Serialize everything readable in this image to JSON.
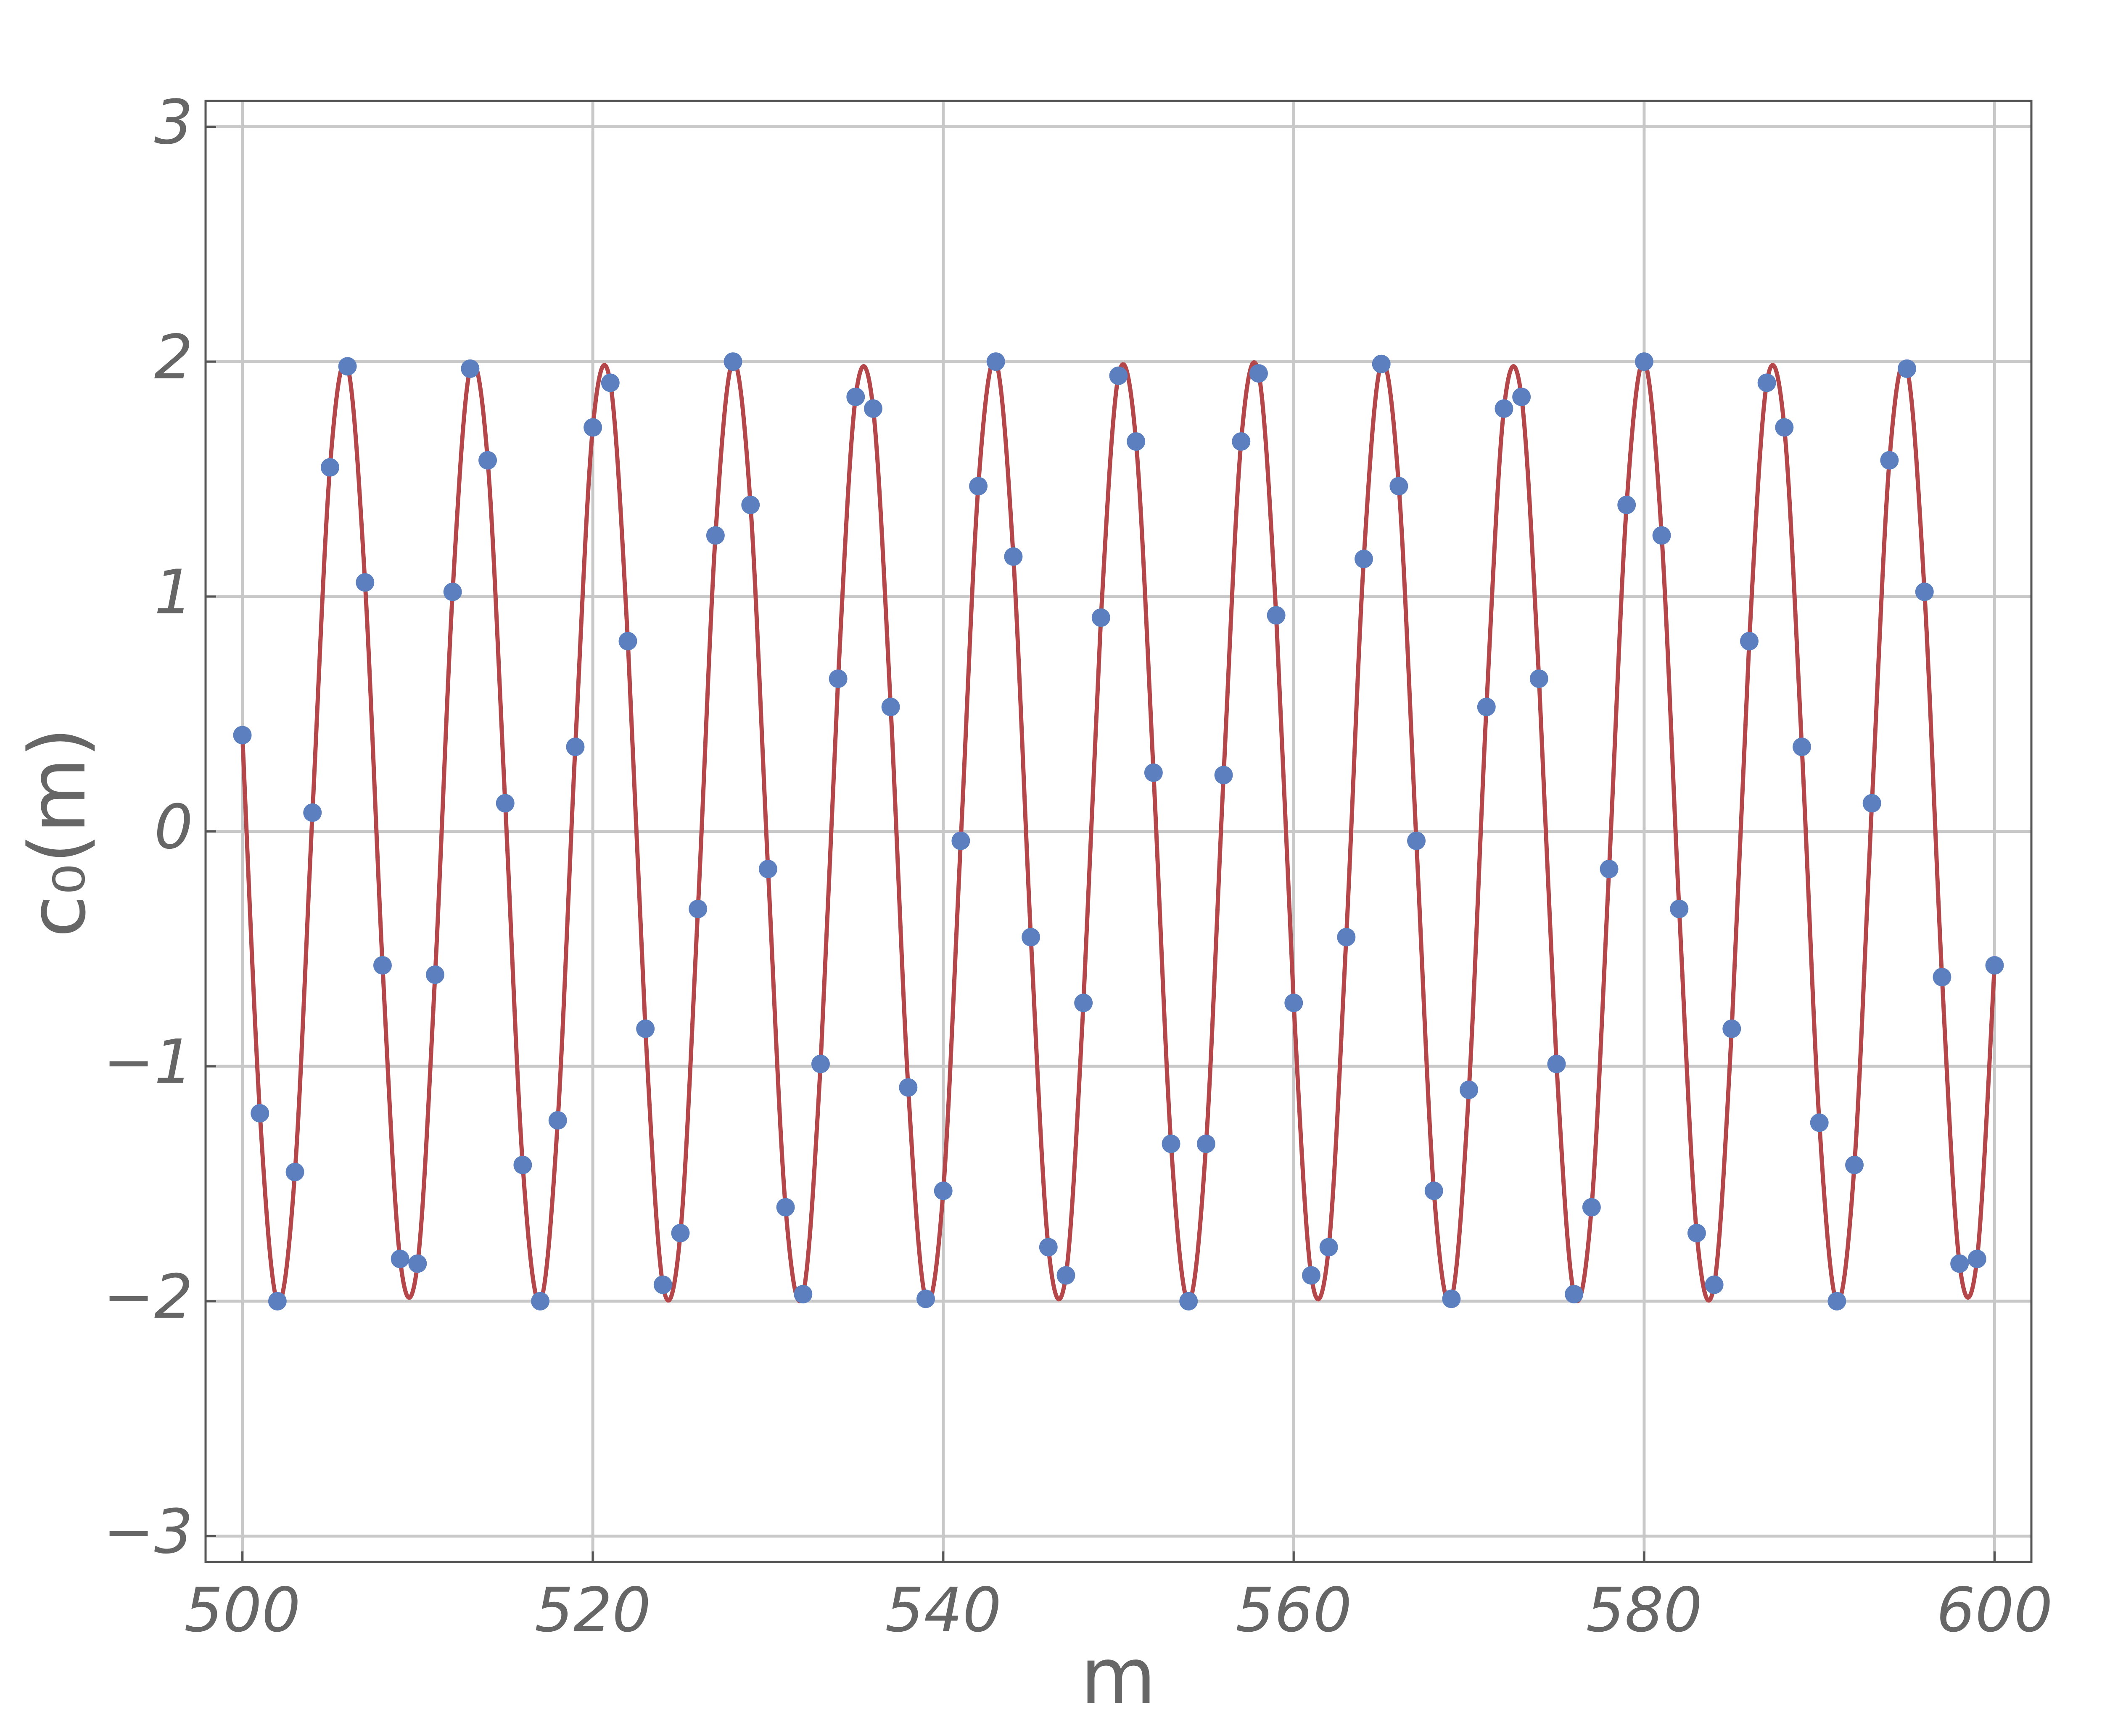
{
  "chart_data": {
    "type": "scatter",
    "x_label": "m",
    "y_label": "c₀(m)",
    "x": [
      500,
      501,
      502,
      503,
      504,
      505,
      506,
      507,
      508,
      509,
      510,
      511,
      512,
      513,
      514,
      515,
      516,
      517,
      518,
      519,
      520,
      521,
      522,
      523,
      524,
      525,
      526,
      527,
      528,
      529,
      530,
      531,
      532,
      533,
      534,
      535,
      536,
      537,
      538,
      539,
      540,
      541,
      542,
      543,
      544,
      545,
      546,
      547,
      548,
      549,
      550,
      551,
      552,
      553,
      554,
      555,
      556,
      557,
      558,
      559,
      560,
      561,
      562,
      563,
      564,
      565,
      566,
      567,
      568,
      569,
      570,
      571,
      572,
      573,
      574,
      575,
      576,
      577,
      578,
      579,
      580,
      581,
      582,
      583,
      584,
      585,
      586,
      587,
      588,
      589,
      590,
      591,
      592,
      593,
      594,
      595,
      596,
      597,
      598,
      599,
      600
    ],
    "series": [
      {
        "type": "scatter",
        "color": "#5b7fbf",
        "values": [
          0.41,
          -1.2,
          -2.0,
          -1.45,
          0.08,
          1.55,
          1.98,
          1.06,
          -0.57,
          -1.82,
          -1.84,
          -0.61,
          1.02,
          1.97,
          1.58,
          0.12,
          -1.42,
          -2.0,
          -1.23,
          0.36,
          1.72,
          1.91,
          0.81,
          -0.84,
          -1.93,
          -1.71,
          -0.33,
          1.26,
          2.0,
          1.39,
          -0.16,
          -1.6,
          -1.97,
          -0.99,
          0.65,
          1.85,
          1.8,
          0.53,
          -1.09,
          -1.99,
          -1.53,
          -0.04,
          1.47,
          2.0,
          1.17,
          -0.45,
          -1.77,
          -1.89,
          -0.73,
          0.91,
          1.94,
          1.66,
          0.25,
          -1.33,
          -2.0,
          -1.33,
          0.24,
          1.66,
          1.95,
          0.92,
          -0.73,
          -1.89,
          -1.77,
          -0.45,
          1.16,
          1.99,
          1.47,
          -0.04,
          -1.53,
          -1.99,
          -1.1,
          0.53,
          1.8,
          1.85,
          0.65,
          -0.99,
          -1.97,
          -1.6,
          -0.16,
          1.39,
          2.0,
          1.26,
          -0.33,
          -1.71,
          -1.93,
          -0.84,
          0.81,
          1.91,
          1.72,
          0.36,
          -1.24,
          -2.0,
          -1.42,
          0.12,
          1.58,
          1.97,
          1.02,
          -0.62,
          -1.84,
          -1.82,
          -0.57
        ]
      },
      {
        "type": "line",
        "color": "#b5474a",
        "values": [
          0.41,
          -1.2,
          -2.0,
          -1.45,
          0.08,
          1.55,
          1.98,
          1.06,
          -0.57,
          -1.82,
          -1.84,
          -0.61,
          1.02,
          1.97,
          1.58,
          0.12,
          -1.42,
          -2.0,
          -1.23,
          0.36,
          1.72,
          1.91,
          0.81,
          -0.84,
          -1.93,
          -1.71,
          -0.33,
          1.26,
          2.0,
          1.39,
          -0.16,
          -1.6,
          -1.97,
          -0.99,
          0.65,
          1.85,
          1.8,
          0.53,
          -1.09,
          -1.99,
          -1.53,
          -0.04,
          1.47,
          2.0,
          1.17,
          -0.45,
          -1.77,
          -1.89,
          -0.73,
          0.91,
          1.94,
          1.66,
          0.25,
          -1.33,
          -2.0,
          -1.33,
          0.24,
          1.66,
          1.95,
          0.92,
          -0.73,
          -1.89,
          -1.77,
          -0.45,
          1.16,
          1.99,
          1.47,
          -0.04,
          -1.53,
          -1.99,
          -1.1,
          0.53,
          1.8,
          1.85,
          0.65,
          -0.99,
          -1.97,
          -1.6,
          -0.16,
          1.39,
          2.0,
          1.26,
          -0.33,
          -1.71,
          -1.93,
          -0.84,
          0.81,
          1.91,
          1.72,
          0.36,
          -1.24,
          -2.0,
          -1.42,
          0.12,
          1.58,
          1.97,
          1.02,
          -0.62,
          -1.84,
          -1.82,
          -0.57
        ]
      }
    ],
    "xlim": [
      497.9,
      602.1
    ],
    "ylim": [
      -3.11,
      3.11
    ],
    "xticks": [
      500,
      520,
      540,
      560,
      580,
      600
    ],
    "yticks": [
      {
        "value": -3,
        "label": "−3"
      },
      {
        "value": -2,
        "label": "−2"
      },
      {
        "value": -1,
        "label": "−1"
      },
      0,
      1,
      2,
      3
    ],
    "grid": true
  }
}
